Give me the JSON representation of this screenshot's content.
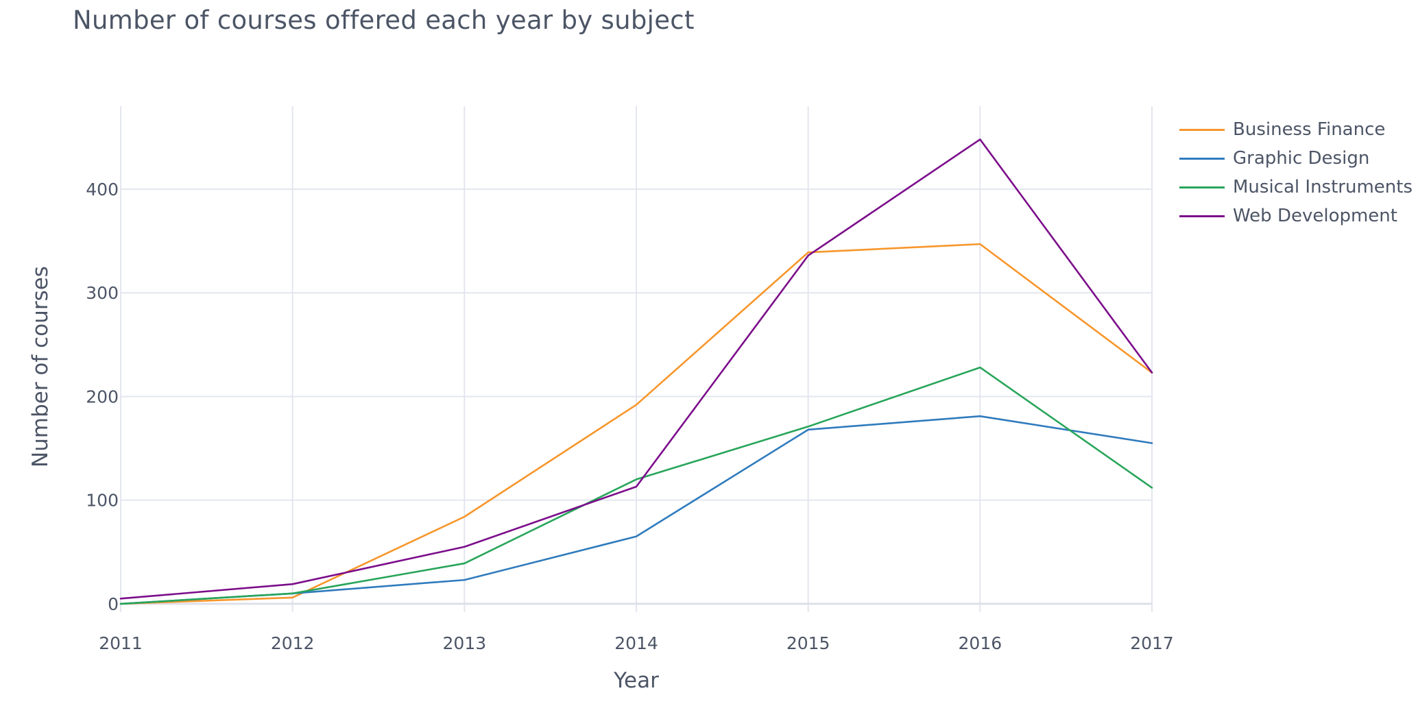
{
  "chart_data": {
    "type": "line",
    "title": "Number of courses offered each year by subject",
    "xlabel": "Year",
    "ylabel": "Number of courses",
    "x": [
      2011,
      2012,
      2013,
      2014,
      2015,
      2016,
      2017
    ],
    "xlim": [
      2011,
      2017
    ],
    "ylim": [
      -8,
      480
    ],
    "yticks": [
      0,
      100,
      200,
      300,
      400
    ],
    "grid": true,
    "legend": "top-right",
    "series": [
      {
        "name": "Business Finance",
        "color": "#f7962b",
        "values": [
          0,
          6,
          84,
          192,
          339,
          347,
          223
        ]
      },
      {
        "name": "Graphic Design",
        "color": "#2f7bbd",
        "values": [
          0,
          10,
          23,
          65,
          168,
          181,
          155
        ]
      },
      {
        "name": "Musical Instruments",
        "color": "#28a55a",
        "values": [
          0,
          10,
          39,
          120,
          171,
          228,
          112
        ]
      },
      {
        "name": "Web Development",
        "color": "#7b0d8a",
        "values": [
          5,
          19,
          55,
          113,
          336,
          448,
          223
        ]
      }
    ]
  }
}
